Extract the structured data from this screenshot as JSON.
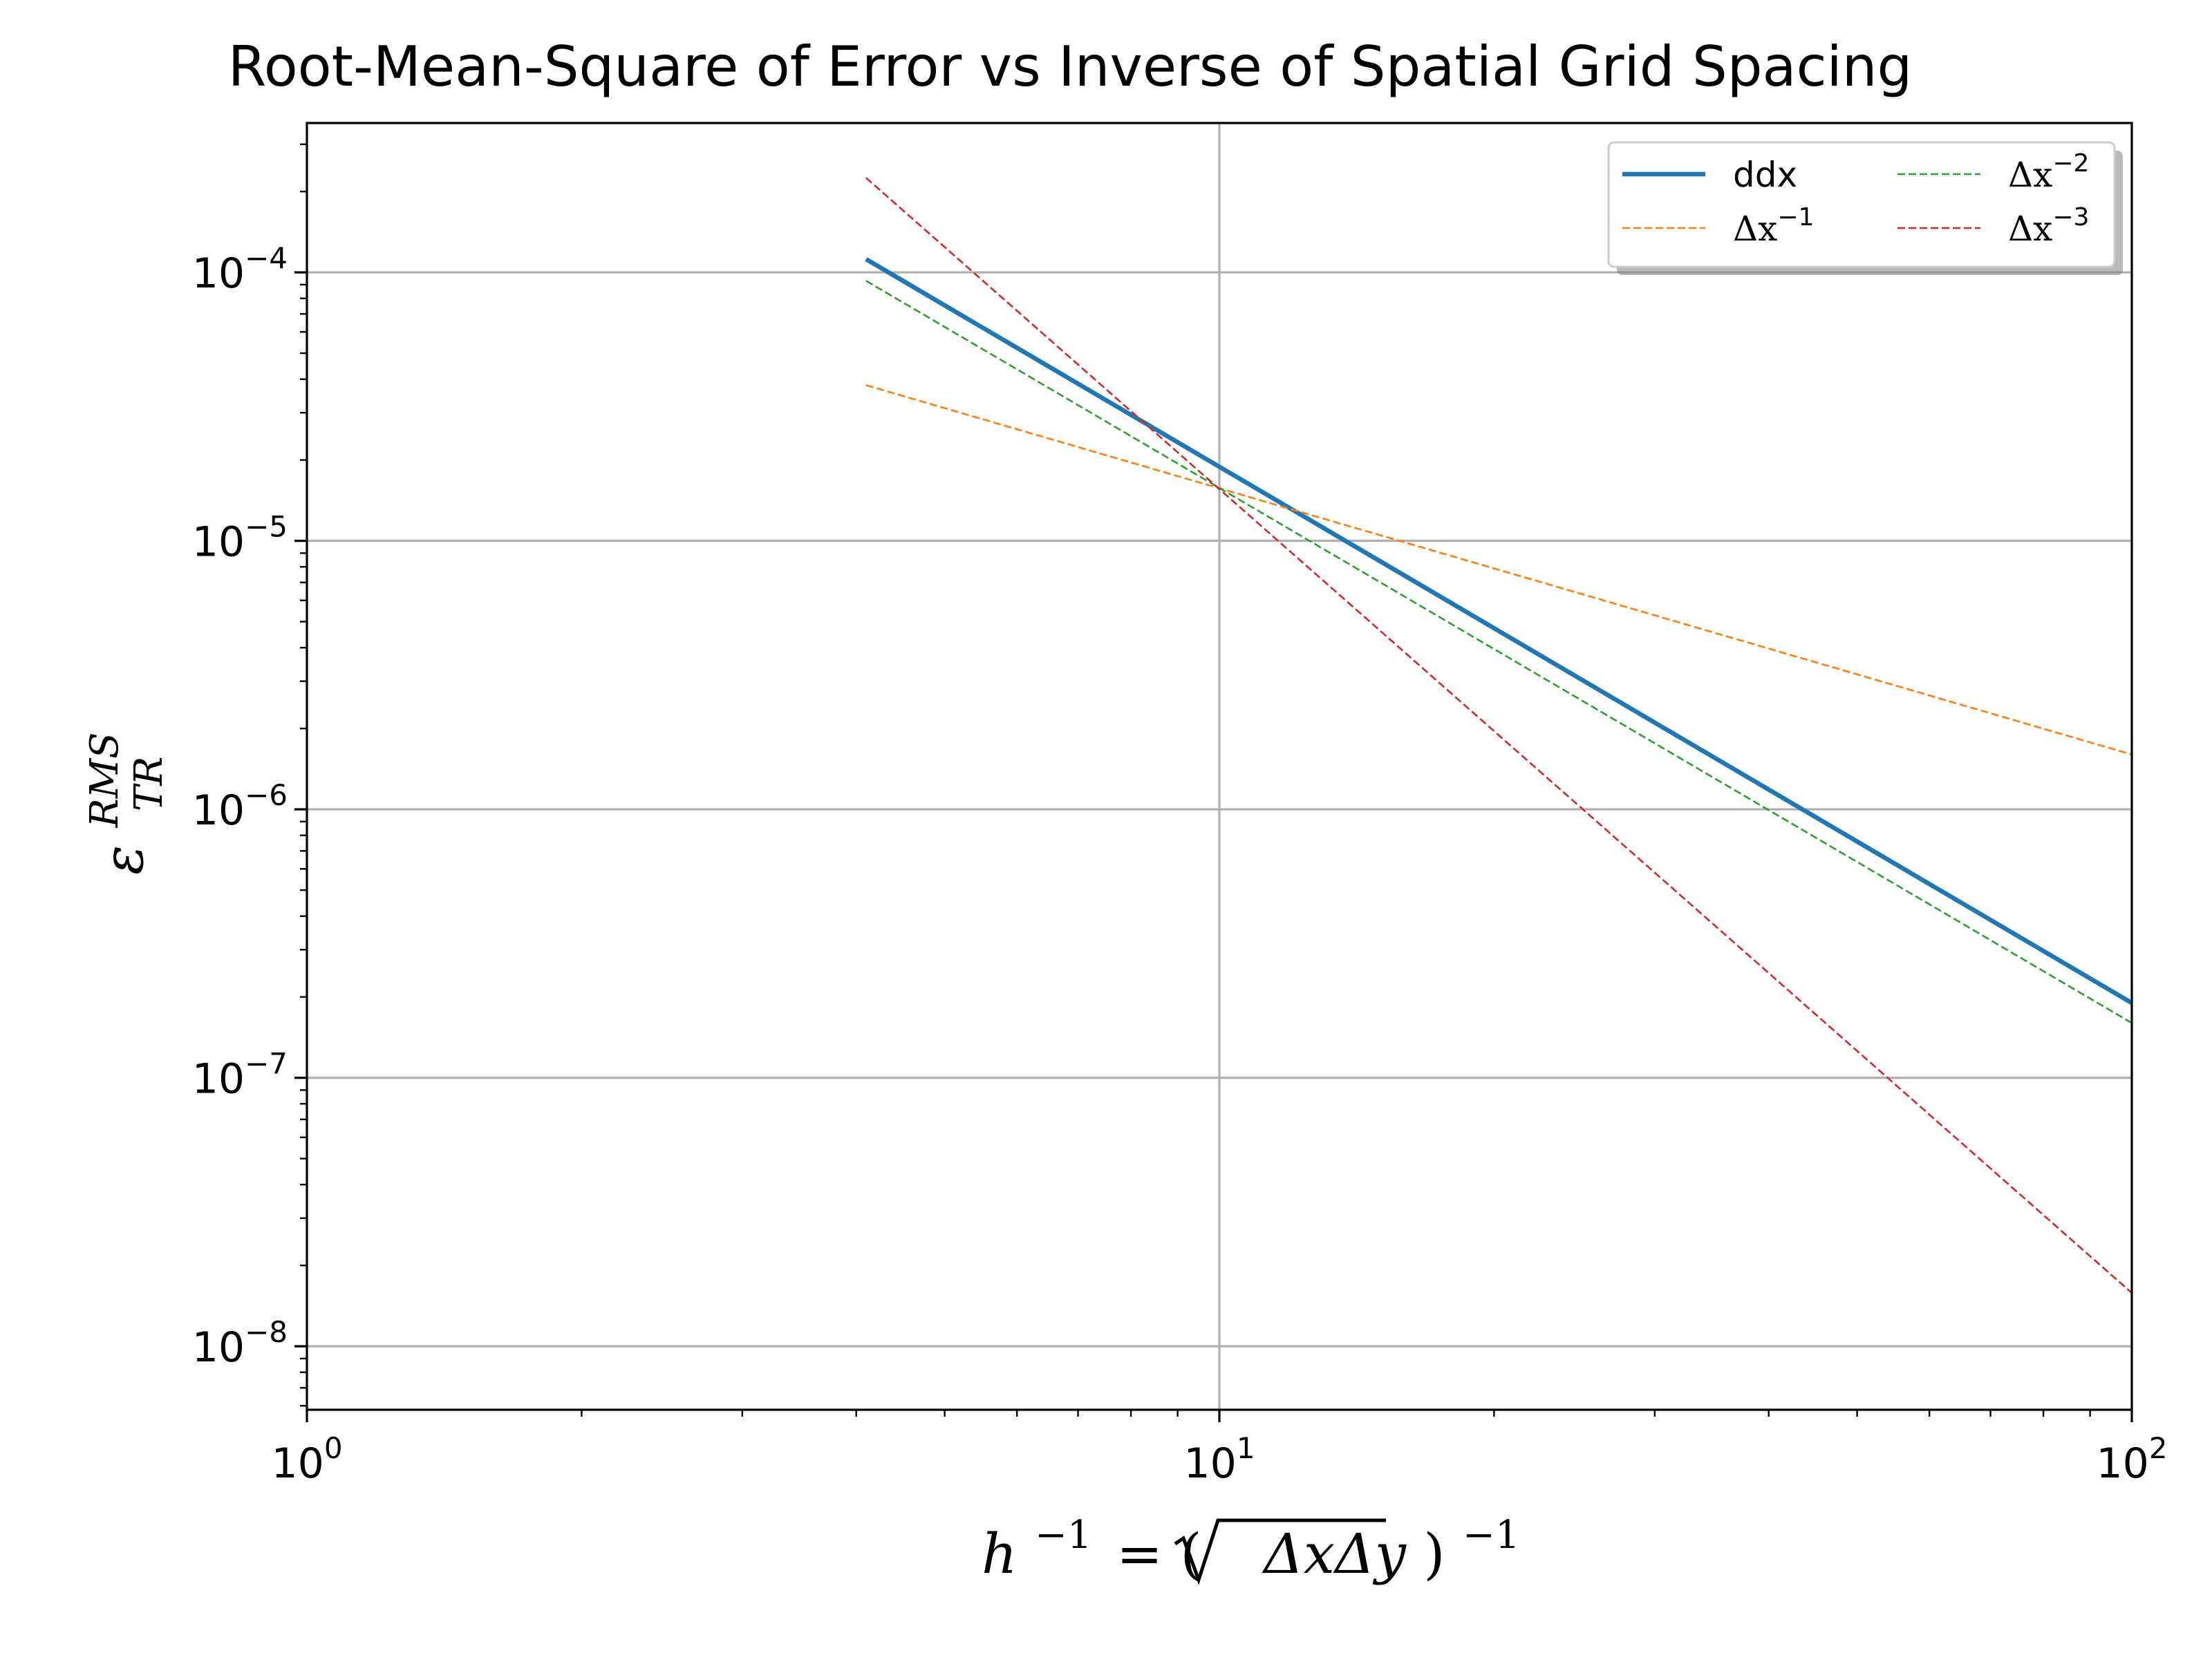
{
  "chart_data": {
    "type": "line",
    "title": "Root-Mean-Square of Error vs Inverse of Spatial Grid Spacing",
    "xlabel": {
      "h": "h",
      "exp": "−1",
      "eq": "= (",
      "rad": "ΔxΔy",
      "close": ")",
      "exp2": "−1"
    },
    "ylabel": {
      "base": "ε",
      "sup": "RMS",
      "sub": "TR"
    },
    "x_scale": "log",
    "y_scale": "log",
    "xlim": [
      1,
      100
    ],
    "ylim": [
      5.8e-09,
      0.00036
    ],
    "grid": true,
    "x_ticks": [
      {
        "value": 1,
        "base": "10",
        "exp": "0"
      },
      {
        "value": 10,
        "base": "10",
        "exp": "1"
      },
      {
        "value": 100,
        "base": "10",
        "exp": "2"
      }
    ],
    "y_ticks": [
      {
        "value": 1e-08,
        "base": "10",
        "exp": "−8"
      },
      {
        "value": 1e-07,
        "base": "10",
        "exp": "−7"
      },
      {
        "value": 1e-06,
        "base": "10",
        "exp": "−6"
      },
      {
        "value": 1e-05,
        "base": "10",
        "exp": "−5"
      },
      {
        "value": 0.0001,
        "base": "10",
        "exp": "−4"
      }
    ],
    "legend": {
      "position": "top-right",
      "columns": 2
    },
    "series": [
      {
        "name": "ddx",
        "name_base": "ddx",
        "name_exp": "",
        "color": "#1f77b4",
        "style": "solid",
        "x": [
          4.1,
          100
        ],
        "y": [
          0.000112,
          1.9e-07
        ]
      },
      {
        "name": "Δx^−1",
        "name_base": "Δx",
        "name_exp": "−1",
        "color": "#ff7f0e",
        "style": "dashed",
        "x": [
          4.1,
          100
        ],
        "y": [
          3.8e-05,
          1.6e-06
        ]
      },
      {
        "name": "Δx^−2",
        "name_base": "Δx",
        "name_exp": "−2",
        "color": "#2ca02c",
        "style": "dashed",
        "x": [
          4.1,
          100
        ],
        "y": [
          9.3e-05,
          1.6e-07
        ]
      },
      {
        "name": "Δx^−3",
        "name_base": "Δx",
        "name_exp": "−3",
        "color": "#d62728",
        "style": "dashed",
        "x": [
          4.1,
          100
        ],
        "y": [
          0.000225,
          1.58e-08
        ]
      }
    ]
  }
}
